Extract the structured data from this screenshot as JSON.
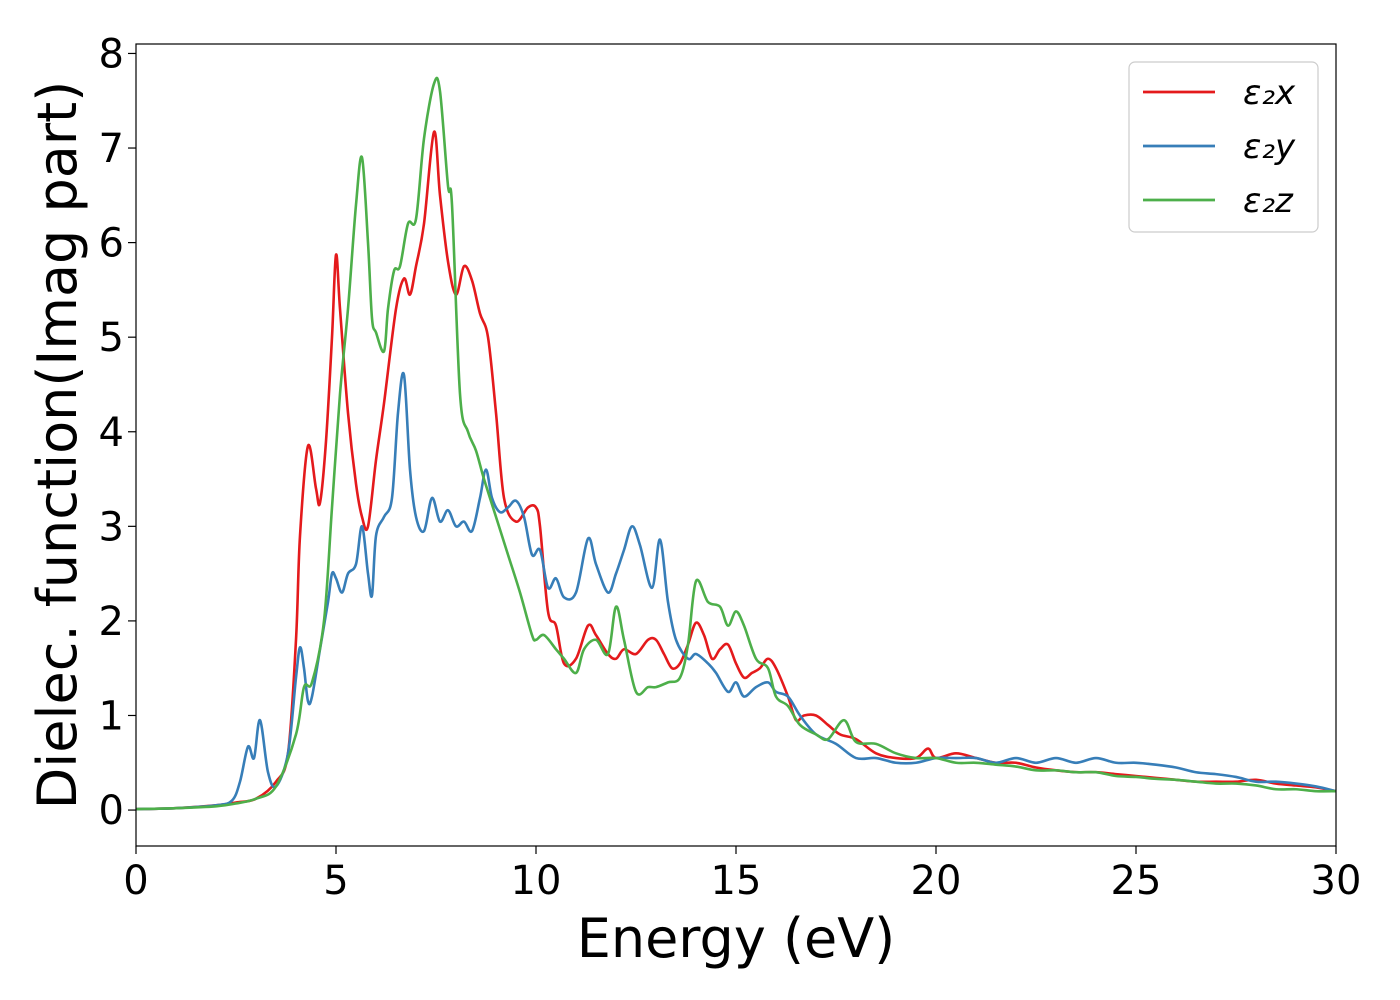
{
  "chart_data": {
    "type": "line",
    "title": "",
    "xlabel": "Energy (eV)",
    "ylabel": "Dielec. function(Imag part)",
    "xlim": [
      0,
      30
    ],
    "ylim": [
      -0.38,
      8.1
    ],
    "xticks": [
      0,
      5,
      10,
      15,
      20,
      25,
      30
    ],
    "yticks": [
      0,
      1,
      2,
      3,
      4,
      5,
      6,
      7,
      8
    ],
    "grid": false,
    "legend_position": "top-right",
    "series": [
      {
        "name": "ε₂x",
        "color": "#e41a1c",
        "x": [
          0,
          1,
          2,
          2.5,
          3,
          3.5,
          3.8,
          4.0,
          4.1,
          4.3,
          4.5,
          4.6,
          4.75,
          4.9,
          5.0,
          5.1,
          5.3,
          5.5,
          5.65,
          5.8,
          6.0,
          6.2,
          6.5,
          6.7,
          6.85,
          7.0,
          7.2,
          7.45,
          7.6,
          7.8,
          8.0,
          8.2,
          8.4,
          8.6,
          8.8,
          9.0,
          9.2,
          9.5,
          9.8,
          10.0,
          10.1,
          10.3,
          10.5,
          10.7,
          11.0,
          11.3,
          11.5,
          11.8,
          12.0,
          12.2,
          12.5,
          12.8,
          13.0,
          13.2,
          13.4,
          13.6,
          13.8,
          14.0,
          14.2,
          14.4,
          14.6,
          14.8,
          15.0,
          15.2,
          15.4,
          15.6,
          15.8,
          16.0,
          16.3,
          16.5,
          16.7,
          17.0,
          17.3,
          17.6,
          18.0,
          18.5,
          19.0,
          19.5,
          19.8,
          20.0,
          20.5,
          21.0,
          21.5,
          22.0,
          22.5,
          23.0,
          23.5,
          24.0,
          24.5,
          25.0,
          25.5,
          26.0,
          26.5,
          27.0,
          27.5,
          28.0,
          28.5,
          29.0,
          29.5,
          30.0
        ],
        "values": [
          0.01,
          0.02,
          0.05,
          0.08,
          0.12,
          0.3,
          0.6,
          1.8,
          2.9,
          3.85,
          3.4,
          3.25,
          3.9,
          5.0,
          5.87,
          5.3,
          4.2,
          3.45,
          3.1,
          3.0,
          3.7,
          4.3,
          5.3,
          5.62,
          5.45,
          5.75,
          6.2,
          7.17,
          6.5,
          5.8,
          5.45,
          5.75,
          5.6,
          5.25,
          5.0,
          4.2,
          3.3,
          3.05,
          3.2,
          3.2,
          3.0,
          2.1,
          1.95,
          1.55,
          1.6,
          1.95,
          1.85,
          1.65,
          1.6,
          1.7,
          1.65,
          1.8,
          1.8,
          1.65,
          1.5,
          1.55,
          1.75,
          1.98,
          1.85,
          1.6,
          1.7,
          1.75,
          1.55,
          1.4,
          1.45,
          1.5,
          1.6,
          1.5,
          1.2,
          0.95,
          1.0,
          1.0,
          0.9,
          0.8,
          0.75,
          0.6,
          0.55,
          0.55,
          0.65,
          0.55,
          0.6,
          0.55,
          0.5,
          0.5,
          0.45,
          0.42,
          0.4,
          0.4,
          0.38,
          0.36,
          0.34,
          0.32,
          0.3,
          0.3,
          0.3,
          0.32,
          0.28,
          0.26,
          0.24,
          0.2
        ]
      },
      {
        "name": "ε₂y",
        "color": "#377eb8",
        "x": [
          0,
          1,
          2,
          2.4,
          2.6,
          2.8,
          2.95,
          3.1,
          3.3,
          3.5,
          3.8,
          4.0,
          4.1,
          4.2,
          4.3,
          4.4,
          4.6,
          4.8,
          4.9,
          5.0,
          5.15,
          5.3,
          5.5,
          5.65,
          5.8,
          5.9,
          6.0,
          6.2,
          6.4,
          6.55,
          6.7,
          6.85,
          7.0,
          7.2,
          7.4,
          7.6,
          7.8,
          8.0,
          8.2,
          8.4,
          8.6,
          8.75,
          8.9,
          9.1,
          9.3,
          9.5,
          9.7,
          9.9,
          10.1,
          10.3,
          10.5,
          10.7,
          11.0,
          11.3,
          11.5,
          11.8,
          12.0,
          12.2,
          12.4,
          12.6,
          12.9,
          13.1,
          13.3,
          13.5,
          13.8,
          14.0,
          14.3,
          14.5,
          14.8,
          15.0,
          15.2,
          15.5,
          15.8,
          16.0,
          16.3,
          16.6,
          17.0,
          17.5,
          18.0,
          18.5,
          19.0,
          19.5,
          20.0,
          20.5,
          21.0,
          21.5,
          22.0,
          22.5,
          23.0,
          23.5,
          24.0,
          24.5,
          25.0,
          25.5,
          26.0,
          26.5,
          27.0,
          27.5,
          28.0,
          28.5,
          29.0,
          29.5,
          30.0
        ],
        "values": [
          0.01,
          0.02,
          0.05,
          0.1,
          0.3,
          0.67,
          0.55,
          0.95,
          0.4,
          0.25,
          0.6,
          1.4,
          1.72,
          1.5,
          1.15,
          1.2,
          1.7,
          2.2,
          2.5,
          2.45,
          2.3,
          2.5,
          2.6,
          3.0,
          2.5,
          2.27,
          2.9,
          3.1,
          3.3,
          4.2,
          4.6,
          3.6,
          3.1,
          2.95,
          3.3,
          3.05,
          3.17,
          3.0,
          3.05,
          2.95,
          3.3,
          3.6,
          3.3,
          3.15,
          3.2,
          3.27,
          3.1,
          2.7,
          2.75,
          2.35,
          2.45,
          2.25,
          2.3,
          2.87,
          2.6,
          2.3,
          2.5,
          2.75,
          3.0,
          2.8,
          2.35,
          2.86,
          2.2,
          1.8,
          1.6,
          1.65,
          1.55,
          1.45,
          1.25,
          1.35,
          1.2,
          1.3,
          1.35,
          1.25,
          1.2,
          1.0,
          0.8,
          0.7,
          0.55,
          0.55,
          0.5,
          0.5,
          0.55,
          0.55,
          0.55,
          0.5,
          0.55,
          0.5,
          0.55,
          0.5,
          0.55,
          0.5,
          0.5,
          0.48,
          0.45,
          0.4,
          0.38,
          0.35,
          0.3,
          0.3,
          0.28,
          0.25,
          0.2
        ]
      },
      {
        "name": "ε₂z",
        "color": "#4daf4a",
        "x": [
          0,
          1,
          2,
          2.5,
          3,
          3.5,
          4.0,
          4.2,
          4.4,
          4.7,
          4.9,
          5.1,
          5.3,
          5.5,
          5.65,
          5.8,
          5.9,
          6.0,
          6.2,
          6.3,
          6.45,
          6.6,
          6.8,
          7.0,
          7.2,
          7.45,
          7.6,
          7.8,
          7.9,
          8.1,
          8.3,
          8.5,
          8.7,
          9.0,
          9.3,
          9.6,
          9.9,
          10.0,
          10.2,
          10.5,
          10.7,
          11.0,
          11.2,
          11.5,
          11.8,
          12.0,
          12.2,
          12.5,
          12.8,
          13.0,
          13.3,
          13.6,
          13.8,
          14.0,
          14.3,
          14.6,
          14.8,
          15.0,
          15.2,
          15.5,
          15.8,
          16.0,
          16.3,
          16.6,
          17.0,
          17.3,
          17.7,
          18.0,
          18.5,
          19.0,
          19.5,
          20.0,
          20.5,
          21.0,
          21.5,
          22.0,
          22.5,
          23.0,
          23.5,
          24.0,
          24.5,
          25.0,
          25.5,
          26.0,
          26.5,
          27.0,
          27.5,
          28.0,
          28.5,
          29.0,
          29.5,
          30.0
        ],
        "values": [
          0.01,
          0.02,
          0.04,
          0.07,
          0.12,
          0.25,
          0.8,
          1.3,
          1.35,
          2.0,
          3.2,
          4.4,
          5.3,
          6.4,
          6.9,
          6.0,
          5.2,
          5.05,
          4.85,
          5.3,
          5.7,
          5.75,
          6.2,
          6.25,
          7.1,
          7.68,
          7.6,
          6.6,
          6.4,
          4.4,
          4.0,
          3.8,
          3.5,
          3.1,
          2.7,
          2.3,
          1.85,
          1.8,
          1.85,
          1.7,
          1.6,
          1.45,
          1.7,
          1.8,
          1.65,
          2.15,
          1.8,
          1.25,
          1.3,
          1.3,
          1.35,
          1.4,
          1.75,
          2.42,
          2.2,
          2.15,
          1.95,
          2.1,
          1.95,
          1.6,
          1.5,
          1.2,
          1.1,
          0.9,
          0.8,
          0.75,
          0.95,
          0.72,
          0.7,
          0.6,
          0.55,
          0.55,
          0.5,
          0.5,
          0.48,
          0.46,
          0.42,
          0.42,
          0.4,
          0.4,
          0.36,
          0.35,
          0.33,
          0.32,
          0.3,
          0.28,
          0.28,
          0.26,
          0.22,
          0.22,
          0.2,
          0.2
        ]
      }
    ]
  }
}
